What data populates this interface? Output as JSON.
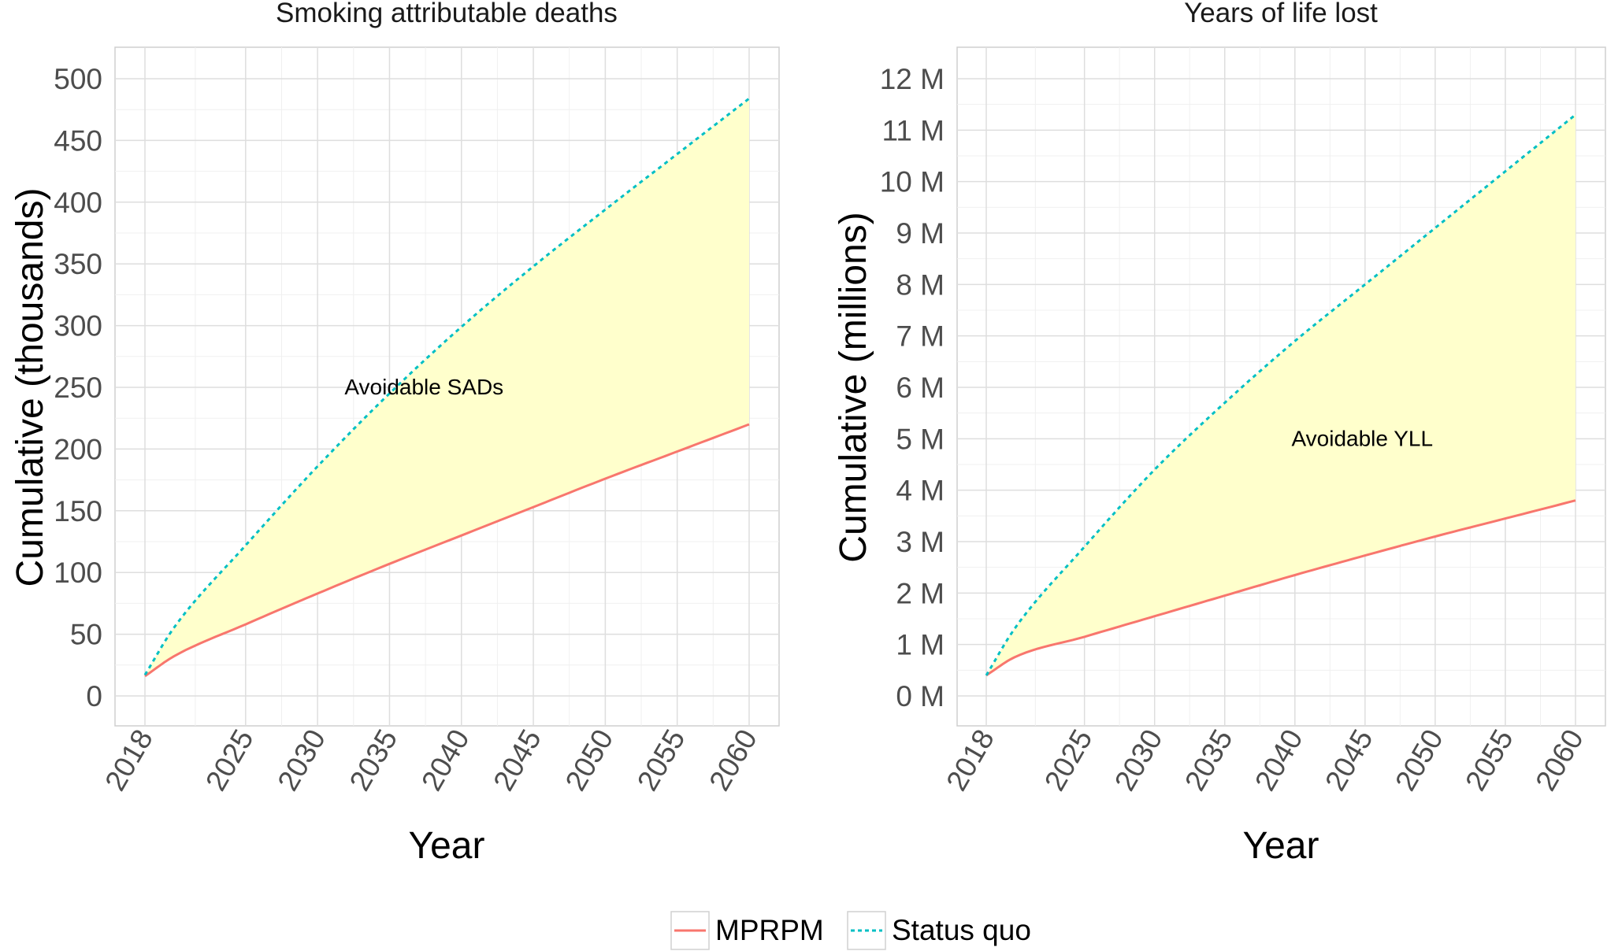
{
  "legend": {
    "items": [
      {
        "label": "MPRPM",
        "color": "#F8766D",
        "style": "solid"
      },
      {
        "label": "Status quo",
        "color": "#00BFC4",
        "style": "dotted"
      }
    ]
  },
  "colors": {
    "fill": "#FFFFCC",
    "grid_major": "#dedede",
    "grid_minor": "#f0f0f0",
    "panel_border": "#cfcfcf",
    "axis_text": "#4d4d4d",
    "title_text": "#1a1a1a"
  },
  "chart_data": [
    {
      "type": "area",
      "title": "Smoking attributable deaths",
      "xlabel": "Year",
      "ylabel": "Cumulative (thousands)",
      "xlim": [
        2018,
        2060
      ],
      "ylim": [
        0,
        500
      ],
      "x_ticks": [
        2018,
        2025,
        2030,
        2035,
        2040,
        2045,
        2050,
        2055,
        2060
      ],
      "y_ticks": [
        0,
        50,
        100,
        150,
        200,
        250,
        300,
        350,
        400,
        450,
        500
      ],
      "y_tick_labels": [
        "0",
        "50",
        "100",
        "150",
        "200",
        "250",
        "300",
        "350",
        "400",
        "450",
        "500"
      ],
      "annotation": {
        "text": "Avoidable SADs",
        "x": 2037.4,
        "y": 250
      },
      "x": [
        2018,
        2020,
        2025,
        2030,
        2035,
        2040,
        2045,
        2050,
        2055,
        2060
      ],
      "series": [
        {
          "name": "MPRPM",
          "values": [
            16,
            32,
            58,
            83,
            107,
            130,
            153,
            176,
            198,
            220
          ]
        },
        {
          "name": "Status quo",
          "values": [
            17,
            55,
            122,
            186,
            245,
            299,
            348,
            394,
            439,
            484
          ]
        }
      ]
    },
    {
      "type": "area",
      "title": "Years of life lost",
      "xlabel": "Year",
      "ylabel": "Cumulative (millions)",
      "xlim": [
        2018,
        2060
      ],
      "ylim": [
        0,
        12
      ],
      "x_ticks": [
        2018,
        2025,
        2030,
        2035,
        2040,
        2045,
        2050,
        2055,
        2060
      ],
      "y_ticks": [
        0,
        1,
        2,
        3,
        4,
        5,
        6,
        7,
        8,
        9,
        10,
        11,
        12
      ],
      "y_tick_labels": [
        "0 M",
        "1 M",
        "2 M",
        "3 M",
        "4 M",
        "5 M",
        "6 M",
        "7 M",
        "8 M",
        "9 M",
        "10 M",
        "11 M",
        "12 M"
      ],
      "annotation": {
        "text": "Avoidable YLL",
        "x": 2044.8,
        "y": 5
      },
      "x": [
        2018,
        2020,
        2025,
        2030,
        2035,
        2040,
        2045,
        2050,
        2055,
        2060
      ],
      "series": [
        {
          "name": "MPRPM",
          "values": [
            0.4,
            0.75,
            1.15,
            1.55,
            1.95,
            2.35,
            2.73,
            3.1,
            3.45,
            3.8
          ]
        },
        {
          "name": "Status quo",
          "values": [
            0.4,
            1.3,
            2.9,
            4.4,
            5.7,
            6.9,
            8.0,
            9.1,
            10.2,
            11.3
          ]
        }
      ]
    }
  ]
}
